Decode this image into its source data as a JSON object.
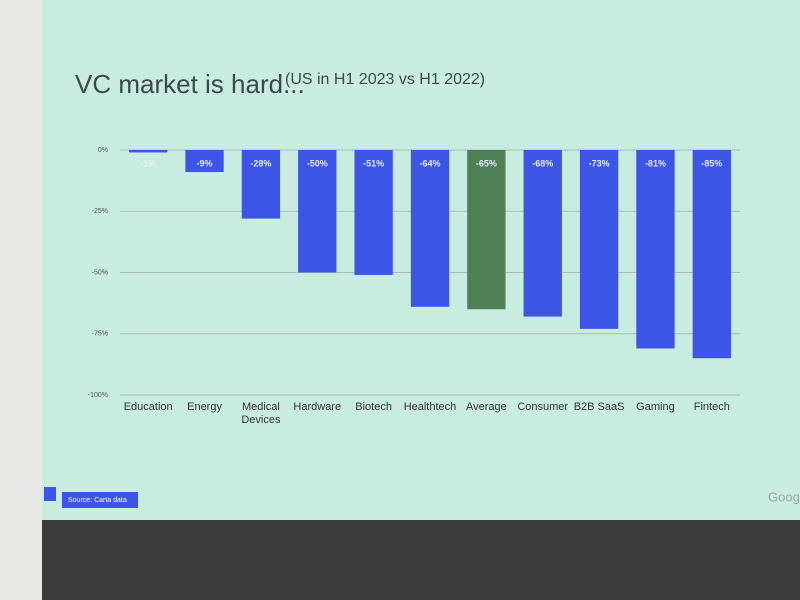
{
  "chart_data": {
    "type": "bar",
    "title": "VC market is hard...",
    "subtitle": "(US in H1 2023 vs H1 2022)",
    "categories": [
      "Education",
      "Energy",
      "Medical Devices",
      "Hardware",
      "Biotech",
      "Healthtech",
      "Average",
      "Consumer",
      "B2B SaaS",
      "Gaming",
      "Fintech"
    ],
    "values": [
      -1,
      -9,
      -28,
      -50,
      -51,
      -64,
      -65,
      -68,
      -73,
      -81,
      -85
    ],
    "value_labels": [
      "-1%",
      "-9%",
      "-28%",
      "-50%",
      "-51%",
      "-64%",
      "-65%",
      "-68%",
      "-73%",
      "-81%",
      "-85%"
    ],
    "colors": [
      "#3d55e6",
      "#3d55e6",
      "#3d55e6",
      "#3d55e6",
      "#3d55e6",
      "#3d55e6",
      "#4f7f55",
      "#3d55e6",
      "#3d55e6",
      "#3d55e6",
      "#3d55e6"
    ],
    "ylim": [
      -100,
      0
    ],
    "yticks": [
      {
        "value": 0,
        "label": "0%"
      },
      {
        "value": -25,
        "label": "-25%"
      },
      {
        "value": -50,
        "label": "-50%"
      },
      {
        "value": -75,
        "label": "-75%"
      },
      {
        "value": -100,
        "label": "-100%"
      }
    ],
    "grid": true,
    "source": "Source: Carta data",
    "logo_text": "Goog"
  }
}
